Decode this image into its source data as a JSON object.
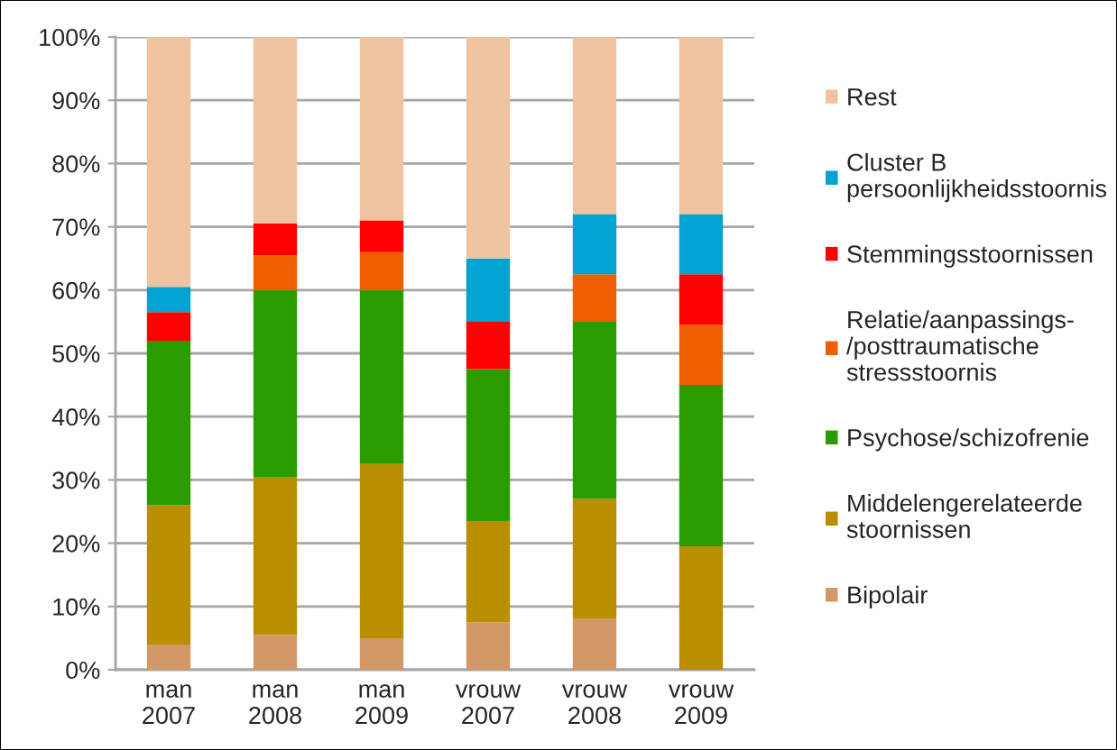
{
  "chart_data": {
    "type": "bar",
    "stacked": true,
    "categories": [
      "man\n2007",
      "man\n2008",
      "man\n2009",
      "vrouw\n2007",
      "vrouw\n2008",
      "vrouw\n2009"
    ],
    "series": [
      {
        "name": "Bipolair",
        "color": "#d29868",
        "values": [
          4,
          5.5,
          5,
          7.5,
          8,
          0
        ]
      },
      {
        "name": "Middelengerelateerde\nstoornissen",
        "color": "#b98e00",
        "values": [
          22,
          25,
          27.5,
          16,
          19,
          19.5
        ]
      },
      {
        "name": "Psychose/schizofrenie",
        "color": "#2a9c00",
        "values": [
          26,
          29.5,
          27.5,
          24,
          28,
          25.5
        ]
      },
      {
        "name": "Relatie/aanpassings-\n/posttraumatische\nstressstoornis",
        "color": "#ef5f00",
        "values": [
          0,
          5.5,
          6,
          0,
          7.5,
          9.5
        ]
      },
      {
        "name": "Stemmingsstoornissen",
        "color": "#ff0000",
        "values": [
          4.5,
          5,
          5,
          7.5,
          0,
          8
        ]
      },
      {
        "name": "Cluster B\npersoonlijkheidsstoornis",
        "color": "#00a3d1",
        "values": [
          4,
          0,
          0,
          10,
          9.5,
          9.5
        ]
      },
      {
        "name": "Rest",
        "color": "#efc3a0",
        "values": [
          39.5,
          29.5,
          29,
          35,
          28,
          28
        ]
      }
    ],
    "ylim": [
      0,
      100
    ],
    "yticks": [
      {
        "value": 0,
        "label": "0%"
      },
      {
        "value": 10,
        "label": "10%"
      },
      {
        "value": 20,
        "label": "20%"
      },
      {
        "value": 30,
        "label": "30%"
      },
      {
        "value": 40,
        "label": "40%"
      },
      {
        "value": 50,
        "label": "50%"
      },
      {
        "value": 60,
        "label": "60%"
      },
      {
        "value": 70,
        "label": "70%"
      },
      {
        "value": 80,
        "label": "80%"
      },
      {
        "value": 90,
        "label": "90%"
      },
      {
        "value": 100,
        "label": "100%"
      }
    ],
    "grid": "y",
    "legend": "right"
  }
}
